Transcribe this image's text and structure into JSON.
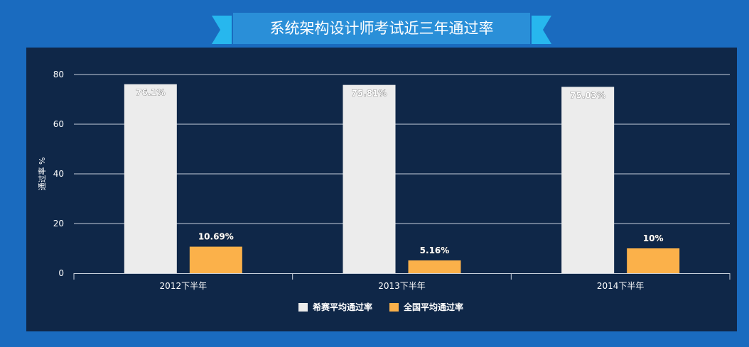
{
  "banner": {
    "title": "系统架构设计师考试近三年通过率"
  },
  "colors": {
    "page_bg": "#1a6bbf",
    "panel_bg": "#0f2748",
    "banner_fill": "#2a8fd8",
    "banner_ribbon": "#27b7ee",
    "series_1": "#ececec",
    "series_2": "#fbb14a",
    "gridline": "#c7cfdb",
    "text": "#ffffff"
  },
  "chart_data": {
    "type": "bar",
    "title": "",
    "xlabel": "",
    "ylabel": "通过率 %",
    "ylim": [
      0,
      80
    ],
    "yticks": [
      0,
      20,
      40,
      60,
      80
    ],
    "grid": true,
    "legend_position": "bottom-center",
    "categories": [
      "2012下半年",
      "2013下半年",
      "2014下半年"
    ],
    "series": [
      {
        "name": "希赛平均通过率",
        "values": [
          76.1,
          75.81,
          75.03
        ],
        "labels": [
          "76.1%",
          "75.81%",
          "75.03%"
        ]
      },
      {
        "name": "全国平均通过率",
        "values": [
          10.69,
          5.16,
          10
        ],
        "labels": [
          "10.69%",
          "5.16%",
          "10%"
        ]
      }
    ]
  }
}
